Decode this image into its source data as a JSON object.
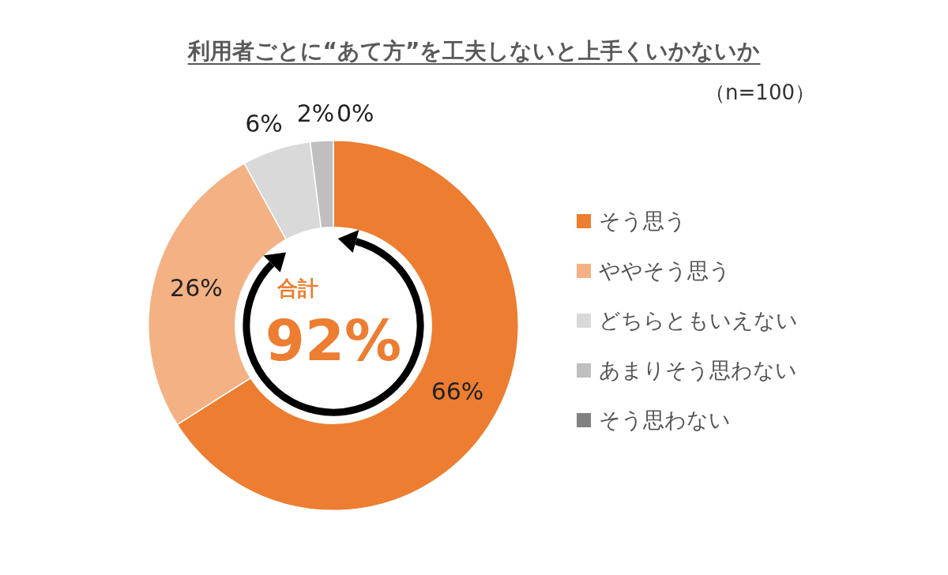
{
  "chart_data": {
    "type": "donut",
    "title": "利用者ごとに“あて方”を工夫しないと上手くいかないか",
    "subtitle": "（n=100）",
    "categories": [
      "そう思う",
      "ややそう思う",
      "どちらともいえない",
      "あまりそう思わない",
      "そう思わない"
    ],
    "values": [
      66,
      26,
      6,
      2,
      0
    ],
    "colors": [
      "#ed7d31",
      "#f4b183",
      "#d9d9d9",
      "#bfbfbf",
      "#808080"
    ],
    "value_labels": [
      "66%",
      "26%",
      "6%",
      "2%",
      "0%"
    ],
    "annotations": [
      "合計",
      "92%"
    ],
    "legend": "right"
  }
}
